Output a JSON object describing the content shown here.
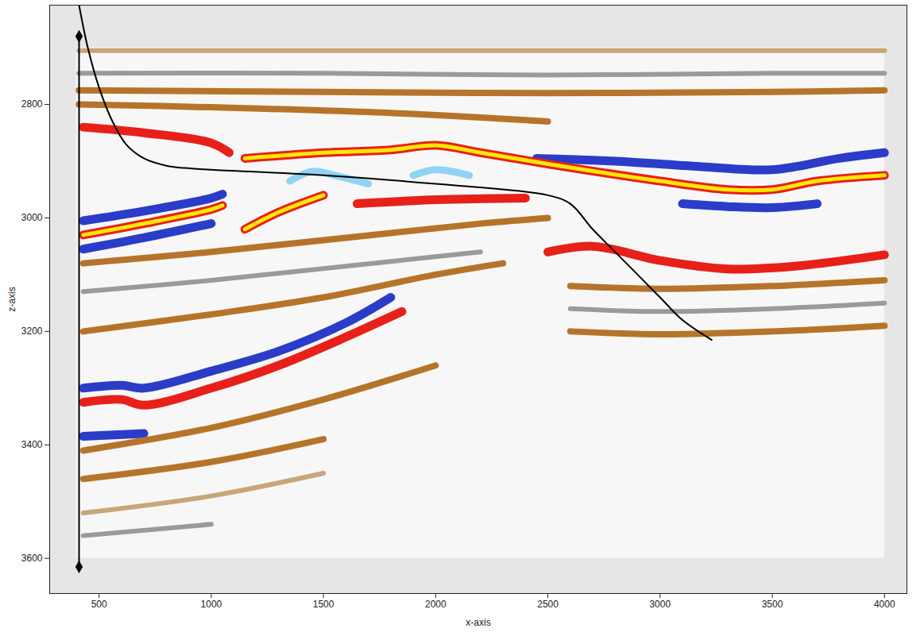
{
  "chart_data": {
    "type": "line",
    "x_label": "x-axis",
    "y_label": "z-axis",
    "xlim": [
      280,
      4100
    ],
    "ylim": [
      3662,
      2625
    ],
    "xticks": [
      500,
      1000,
      1500,
      2000,
      2500,
      3000,
      3500,
      4000
    ],
    "yticks": [
      2800,
      3000,
      3200,
      3400,
      3600
    ],
    "grid": false,
    "image_extent": {
      "x": [
        400,
        4000
      ],
      "y": [
        2700,
        3600
      ]
    },
    "series": [
      {
        "color": "#c9a57a",
        "x": [
          410,
          1500,
          2500,
          3500,
          4000
        ],
        "values": [
          2705,
          2705,
          2705,
          2705,
          2705
        ]
      },
      {
        "color": "#9a9a9a",
        "x": [
          410,
          1500,
          2500,
          3500,
          4000
        ],
        "values": [
          2745,
          2745,
          2748,
          2745,
          2745
        ]
      },
      {
        "color": "#b5742a",
        "x": [
          410,
          1500,
          2500,
          3500,
          4000
        ],
        "values": [
          2775,
          2778,
          2780,
          2778,
          2775
        ]
      },
      {
        "color": "#b5742a",
        "x": [
          410,
          1000,
          1800,
          2500
        ],
        "values": [
          2800,
          2805,
          2815,
          2830
        ]
      },
      {
        "color": "#2a3cc8",
        "x": [
          2450,
          2800,
          3200,
          3500,
          3800,
          4000
        ],
        "values": [
          2895,
          2900,
          2910,
          2915,
          2895,
          2885
        ]
      },
      {
        "color": "#e8201a",
        "x": [
          430,
          700,
          1000,
          1080
        ],
        "values": [
          2840,
          2850,
          2868,
          2885
        ]
      },
      {
        "color": "#e8201a",
        "x": [
          1150,
          1500,
          1800,
          2000,
          2200,
          2500,
          3000,
          3300,
          3500,
          3700,
          4000
        ],
        "values": [
          2895,
          2885,
          2880,
          2872,
          2885,
          2905,
          2935,
          2950,
          2950,
          2935,
          2925
        ]
      },
      {
        "color": "#ffe800",
        "x": [
          1150,
          1500,
          1800,
          2000,
          2200,
          2500,
          3000,
          3300,
          3500,
          3700,
          4000
        ],
        "values": [
          2895,
          2885,
          2880,
          2872,
          2885,
          2905,
          2935,
          2950,
          2950,
          2935,
          2925
        ]
      },
      {
        "color": "#2a3cc8",
        "x": [
          3100,
          3300,
          3500,
          3700
        ],
        "values": [
          2975,
          2980,
          2982,
          2975
        ]
      },
      {
        "color": "#8fd3f5",
        "x": [
          1350,
          1450,
          1550,
          1700
        ],
        "values": [
          2935,
          2918,
          2925,
          2940
        ]
      },
      {
        "color": "#8fd3f5",
        "x": [
          1900,
          2000,
          2150
        ],
        "values": [
          2925,
          2915,
          2925
        ]
      },
      {
        "color": "#2a3cc8",
        "x": [
          430,
          700,
          1000,
          1050
        ],
        "values": [
          3005,
          2988,
          2965,
          2958
        ]
      },
      {
        "color": "#e8201a",
        "x": [
          430,
          700,
          1000,
          1050
        ],
        "values": [
          3030,
          3010,
          2985,
          2978
        ]
      },
      {
        "color": "#ffe800",
        "x": [
          430,
          700,
          1000,
          1050
        ],
        "values": [
          3030,
          3010,
          2985,
          2978
        ]
      },
      {
        "color": "#2a3cc8",
        "x": [
          430,
          700,
          1000
        ],
        "values": [
          3055,
          3035,
          3010
        ]
      },
      {
        "color": "#e8201a",
        "x": [
          1150,
          1300,
          1500
        ],
        "values": [
          3020,
          2990,
          2960
        ]
      },
      {
        "color": "#ffe800",
        "x": [
          1150,
          1300,
          1500
        ],
        "values": [
          3020,
          2990,
          2960
        ]
      },
      {
        "color": "#e8201a",
        "x": [
          1650,
          2000,
          2400
        ],
        "values": [
          2975,
          2968,
          2965
        ]
      },
      {
        "color": "#b5742a",
        "x": [
          430,
          1000,
          1600,
          2200,
          2500
        ],
        "values": [
          3080,
          3060,
          3035,
          3010,
          3000
        ]
      },
      {
        "color": "#9a9a9a",
        "x": [
          430,
          1000,
          1600,
          2200
        ],
        "values": [
          3130,
          3110,
          3085,
          3060
        ]
      },
      {
        "color": "#e8201a",
        "x": [
          2500,
          2700,
          3000,
          3300,
          3600,
          4000
        ],
        "values": [
          3060,
          3050,
          3075,
          3090,
          3085,
          3065
        ]
      },
      {
        "color": "#b5742a",
        "x": [
          2600,
          3000,
          3500,
          4000
        ],
        "values": [
          3120,
          3125,
          3120,
          3110
        ]
      },
      {
        "color": "#9a9a9a",
        "x": [
          2600,
          3000,
          3500,
          4000
        ],
        "values": [
          3160,
          3165,
          3160,
          3150
        ]
      },
      {
        "color": "#b5742a",
        "x": [
          2600,
          3000,
          3500,
          4000
        ],
        "values": [
          3200,
          3205,
          3200,
          3190
        ]
      },
      {
        "color": "#b5742a",
        "x": [
          430,
          1000,
          1500,
          2000,
          2300
        ],
        "values": [
          3200,
          3170,
          3140,
          3100,
          3080
        ]
      },
      {
        "color": "#2a3cc8",
        "x": [
          430,
          600,
          700,
          1000,
          1300,
          1600,
          1800
        ],
        "values": [
          3300,
          3295,
          3300,
          3270,
          3235,
          3185,
          3140
        ]
      },
      {
        "color": "#e8201a",
        "x": [
          430,
          600,
          700,
          1000,
          1300,
          1600,
          1850
        ],
        "values": [
          3325,
          3320,
          3330,
          3300,
          3260,
          3210,
          3165
        ]
      },
      {
        "color": "#2a3cc8",
        "x": [
          430,
          700
        ],
        "values": [
          3385,
          3380
        ]
      },
      {
        "color": "#b5742a",
        "x": [
          430,
          1000,
          1500,
          2000
        ],
        "values": [
          3410,
          3370,
          3320,
          3260
        ]
      },
      {
        "color": "#b5742a",
        "x": [
          430,
          1000,
          1500
        ],
        "values": [
          3460,
          3430,
          3390
        ]
      },
      {
        "color": "#c9a57a",
        "x": [
          430,
          1000,
          1500
        ],
        "values": [
          3520,
          3490,
          3450
        ]
      },
      {
        "color": "#9a9a9a",
        "x": [
          430,
          1000
        ],
        "values": [
          3560,
          3540
        ]
      },
      {
        "color": "#000000",
        "marker": "diamond",
        "x": [
          411,
          411
        ],
        "values": [
          2680,
          3615
        ]
      },
      {
        "color": "#000000",
        "x": [
          411,
          450,
          500,
          560,
          620,
          700,
          800,
          880,
          1000,
          1500,
          2000,
          2500,
          2600,
          2700,
          2800,
          2900,
          3000,
          3100,
          3230
        ],
        "values": [
          2625,
          2700,
          2770,
          2830,
          2870,
          2895,
          2908,
          2912,
          2915,
          2925,
          2940,
          2960,
          2975,
          3020,
          3060,
          3100,
          3140,
          3180,
          3215
        ]
      }
    ]
  }
}
